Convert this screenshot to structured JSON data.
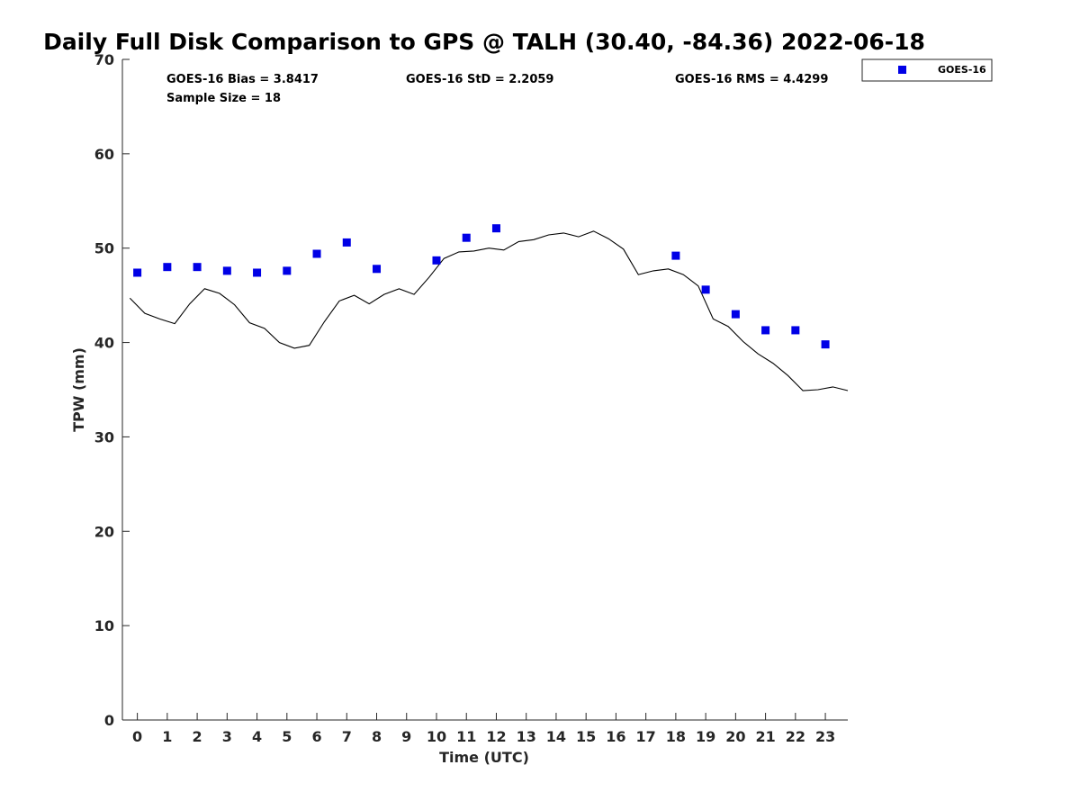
{
  "chart_data": {
    "type": "scatter",
    "title": "Daily Full Disk Comparison to GPS @ TALH (30.40, -84.36) 2022-06-18",
    "xlabel": "Time (UTC)",
    "ylabel": "TPW (mm)",
    "xlim": [
      -0.5,
      23.75
    ],
    "ylim": [
      0,
      70
    ],
    "x_ticks": [
      0,
      1,
      2,
      3,
      4,
      5,
      6,
      7,
      8,
      9,
      10,
      11,
      12,
      13,
      14,
      15,
      16,
      17,
      18,
      19,
      20,
      21,
      22,
      23
    ],
    "y_ticks": [
      0,
      10,
      20,
      30,
      40,
      50,
      60,
      70
    ],
    "stats": {
      "bias": "GOES-16 Bias = 3.8417",
      "std": "GOES-16 StD = 2.2059",
      "rms": "GOES-16 RMS = 4.4299",
      "sample_size": "Sample Size = 18"
    },
    "legend": {
      "label": "GOES-16",
      "position": "top-right outside",
      "marker_color": "#0000e6"
    },
    "series": [
      {
        "name": "GOES-16",
        "kind": "scatter",
        "color": "#0000e6",
        "x": [
          0,
          1,
          2,
          3,
          4,
          5,
          6,
          7,
          8,
          10,
          11,
          12,
          18,
          19,
          20,
          21,
          22,
          23
        ],
        "y": [
          47.4,
          48.0,
          48.0,
          47.6,
          47.4,
          47.6,
          49.4,
          50.6,
          47.8,
          48.7,
          51.1,
          52.1,
          49.2,
          45.6,
          43.0,
          41.3,
          41.3,
          39.8
        ]
      },
      {
        "name": "GPS",
        "kind": "line",
        "color": "#000000",
        "x": [
          -0.25,
          0.25,
          0.75,
          1.25,
          1.75,
          2.25,
          2.75,
          3.25,
          3.75,
          4.25,
          4.75,
          5.25,
          5.75,
          6.25,
          6.75,
          7.25,
          7.75,
          8.25,
          8.75,
          9.25,
          9.75,
          10.25,
          10.75,
          11.25,
          11.75,
          12.25,
          12.75,
          13.25,
          13.75,
          14.25,
          14.75,
          15.25,
          15.75,
          16.25,
          16.75,
          17.25,
          17.75,
          18.25,
          18.75,
          19.25,
          19.75,
          20.25,
          20.75,
          21.25,
          21.75,
          22.25,
          22.75,
          23.25,
          23.75
        ],
        "y": [
          44.7,
          43.1,
          42.5,
          42.0,
          44.1,
          45.7,
          45.2,
          44.0,
          42.1,
          41.5,
          40.0,
          39.4,
          39.7,
          42.2,
          44.4,
          45.0,
          44.1,
          45.1,
          45.7,
          45.1,
          46.9,
          48.9,
          49.6,
          49.7,
          50.0,
          49.8,
          50.7,
          50.9,
          51.4,
          51.6,
          51.2,
          51.8,
          51.0,
          49.9,
          47.2,
          47.6,
          47.8,
          47.2,
          46.0,
          42.5,
          41.7,
          40.1,
          38.8,
          37.8,
          36.5,
          34.9,
          35.0,
          35.3,
          34.9
        ]
      }
    ]
  }
}
